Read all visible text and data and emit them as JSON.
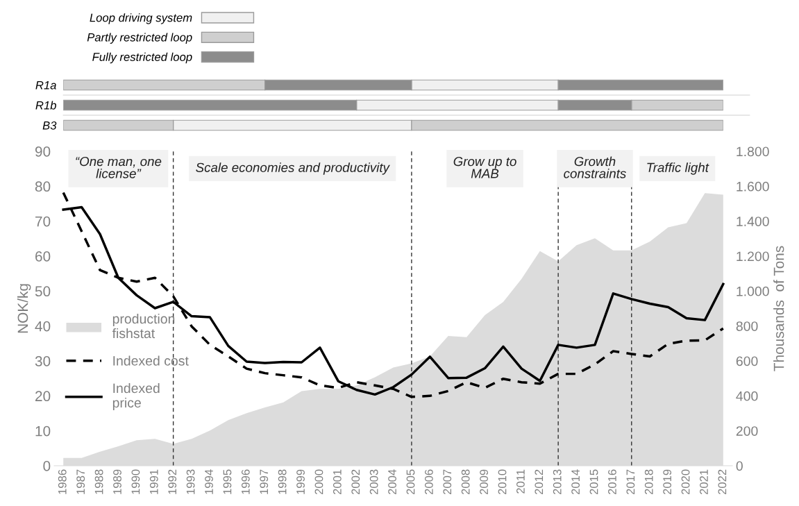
{
  "chart_data": [
    {
      "type": "bar",
      "orientation": "horizontal",
      "categories": [
        "R1a",
        "R1b",
        "B3"
      ],
      "tick_labels": "y",
      "xlim": [
        1986,
        2022
      ],
      "xticks": [
        1986,
        1987,
        1988,
        1989,
        1990,
        1991,
        1992,
        1993,
        1994,
        1995,
        1996,
        1997,
        1998,
        1999,
        2000,
        2001,
        2002,
        2003,
        2004,
        2005,
        2006,
        2007,
        2008,
        2009,
        2010,
        2011,
        2012,
        2013,
        2014,
        2015,
        2016,
        2017,
        2018,
        2019,
        2020,
        2021,
        2022
      ],
      "legend": "top left",
      "series": [
        {
          "name": "Loop driving system",
          "color": "#f0f0f0",
          "values": [
            8,
            11,
            13
          ],
          "base": [
            2005,
            2002,
            1992
          ]
        },
        {
          "name": "Partly restricted loop",
          "color": "#cfcfcf",
          "values": [
            11,
            5,
            6
          ],
          "base": [
            1986,
            2017,
            1986
          ]
        },
        {
          "name": "Fully restricted loop",
          "color": "#8c8c8c",
          "values": [
            8,
            16,
            null
          ],
          "base": [
            1997,
            1986,
            null
          ]
        },
        {
          "color": "#8c8c8c",
          "values": [
            9,
            4,
            null
          ],
          "base": [
            2013,
            2013,
            null
          ]
        },
        {
          "color": "#cfcfcf",
          "values": [
            null,
            null,
            17
          ],
          "base": [
            null,
            null,
            2005
          ]
        }
      ]
    },
    {
      "type": "line",
      "ylabel": "NOK/kg",
      "y2label": "Thousands  of Tons",
      "legend": "left",
      "grid": false,
      "x": [
        1986,
        1987,
        1988,
        1989,
        1990,
        1991,
        1992,
        1993,
        1994,
        1995,
        1996,
        1997,
        1998,
        1999,
        2000,
        2001,
        2002,
        2003,
        2004,
        2005,
        2006,
        2007,
        2008,
        2009,
        2010,
        2011,
        2012,
        2013,
        2014,
        2015,
        2016,
        2017,
        2018,
        2019,
        2020,
        2021,
        2022
      ],
      "xlim": [
        1985.5,
        2022.5
      ],
      "xticks": [
        1986,
        1987,
        1988,
        1989,
        1990,
        1991,
        1992,
        1993,
        1994,
        1995,
        1996,
        1997,
        1998,
        1999,
        2000,
        2001,
        2002,
        2003,
        2004,
        2005,
        2006,
        2007,
        2008,
        2009,
        2010,
        2011,
        2012,
        2013,
        2014,
        2015,
        2016,
        2017,
        2018,
        2019,
        2020,
        2021,
        2022
      ],
      "ylim": [
        0,
        90
      ],
      "yticks": [
        0,
        10,
        20,
        30,
        40,
        50,
        60,
        70,
        80,
        90
      ],
      "y2lim": [
        0,
        1800
      ],
      "y2ticks": [
        0,
        200,
        400,
        600,
        800,
        {
          "value": 1000,
          "label": "1.000"
        },
        {
          "value": 1200,
          "label": "1.200"
        },
        {
          "value": 1400,
          "label": "1.400"
        },
        {
          "value": 1600,
          "label": "1.600"
        },
        {
          "value": 1800,
          "label": "1.800"
        }
      ],
      "series": [
        {
          "name": "production\nfishstat",
          "type": "area",
          "axis": "y2",
          "color": "#dcdcdc",
          "values": [
            45,
            45,
            80,
            111,
            146,
            154,
            125,
            154,
            202,
            261,
            301,
            334,
            363,
            427,
            440,
            440,
            460,
            507,
            562,
            586,
            626,
            743,
            736,
            862,
            938,
            1070,
            1229,
            1170,
            1263,
            1302,
            1233,
            1233,
            1283,
            1365,
            1389,
            1561,
            1552
          ]
        },
        {
          "name": "Indexed cost",
          "type": "line",
          "line_style": "dashed",
          "color": "#000000",
          "values": [
            78.2,
            67.1,
            56.0,
            53.8,
            52.7,
            53.8,
            48.5,
            39.9,
            34.6,
            31.3,
            27.8,
            26.5,
            25.9,
            25.3,
            23.0,
            22.3,
            23.9,
            23.0,
            22.0,
            19.7,
            20.0,
            21.4,
            23.9,
            22.3,
            24.9,
            23.9,
            23.5,
            26.3,
            26.3,
            29.0,
            32.8,
            32.0,
            31.3,
            34.9,
            35.8,
            35.9,
            39.3
          ]
        },
        {
          "name": "Indexed\nprice",
          "type": "line",
          "line_style": "solid",
          "color": "#000000",
          "values": [
            73.3,
            74.0,
            66.3,
            53.8,
            48.8,
            45.1,
            46.9,
            42.8,
            42.5,
            34.3,
            29.8,
            29.4,
            29.7,
            29.6,
            33.8,
            24.2,
            21.7,
            20.4,
            22.5,
            26.1,
            31.2,
            25.1,
            25.2,
            27.9,
            34.1,
            27.8,
            24.3,
            34.6,
            33.8,
            34.6,
            49.3,
            47.7,
            46.4,
            45.4,
            42.2,
            41.7,
            52.0
          ]
        }
      ],
      "ref_lines": [
        {
          "axis": "x",
          "value": 1992,
          "line_style": "dashed",
          "color": "#333333"
        },
        {
          "axis": "x",
          "value": 2005,
          "line_style": "dashed",
          "color": "#333333"
        },
        {
          "axis": "x",
          "value": 2013,
          "line_style": "dashed",
          "color": "#333333"
        },
        {
          "axis": "x",
          "value": 2017,
          "line_style": "dashed",
          "color": "#333333"
        }
      ],
      "annotations": [
        "“One man, one\nlicense”",
        "Scale economies and productivity",
        "Grow up to\nMAB",
        "Growth\nconstraints",
        "Traffic light"
      ]
    }
  ]
}
